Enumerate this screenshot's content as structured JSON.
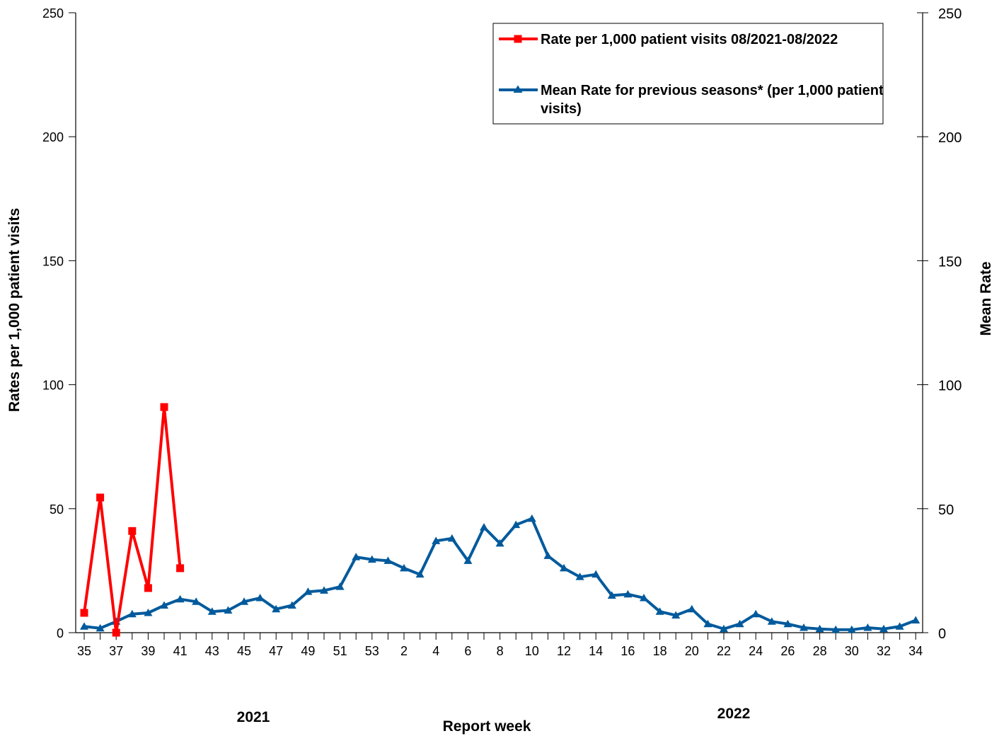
{
  "chart_data": {
    "type": "line",
    "xlabel": "Report week",
    "ylabel_left": "Rates per 1,000 patient visits",
    "ylabel_right": "Mean Rate",
    "ylim": [
      0,
      250
    ],
    "yticks": [
      "0",
      "50",
      "100",
      "150",
      "200",
      "250"
    ],
    "weeks": [
      "35",
      "36",
      "37",
      "38",
      "39",
      "40",
      "41",
      "42",
      "43",
      "44",
      "45",
      "46",
      "47",
      "48",
      "49",
      "50",
      "51",
      "52",
      "53",
      "1",
      "2",
      "3",
      "4",
      "5",
      "6",
      "7",
      "8",
      "9",
      "10",
      "11",
      "12",
      "13",
      "14",
      "15",
      "16",
      "17",
      "18",
      "19",
      "20",
      "21",
      "22",
      "23",
      "24",
      "25",
      "26",
      "27",
      "28",
      "29",
      "30",
      "31",
      "32",
      "33",
      "34"
    ],
    "tick_labels": [
      "35",
      "37",
      "39",
      "41",
      "43",
      "45",
      "47",
      "49",
      "51",
      "53",
      "2",
      "4",
      "6",
      "8",
      "10",
      "12",
      "14",
      "16",
      "18",
      "20",
      "22",
      "24",
      "26",
      "28",
      "30",
      "32",
      "34"
    ],
    "year_labels": [
      "2021",
      "2022"
    ],
    "series": [
      {
        "name": "Rate per 1,000 patient visits 08/2021-08/2022",
        "color": "#ff0000",
        "marker": "square",
        "values": [
          8,
          54.5,
          0,
          41,
          18,
          91,
          26
        ]
      },
      {
        "name": "Mean Rate for previous seasons* (per 1,000 patient visits)",
        "color": "#005a9c",
        "marker": "triangle",
        "values": [
          2.5,
          1.8,
          4.5,
          7.5,
          8,
          11,
          13.5,
          12.5,
          8.5,
          9,
          12.5,
          14,
          9.5,
          11,
          16.5,
          17,
          18.5,
          30.5,
          29.5,
          29,
          26,
          23.5,
          37,
          38,
          29,
          42.5,
          36,
          43.5,
          46,
          31,
          26,
          22.5,
          23.5,
          15,
          15.5,
          14,
          8.5,
          7,
          9.5,
          3.5,
          1.5,
          3.5,
          7.5,
          4.5,
          3.5,
          2,
          1.5,
          1.2,
          1.2,
          2,
          1.5,
          2.5,
          5
        ]
      }
    ],
    "legend": {
      "position": "top-right",
      "entries": [
        "Rate per 1,000 patient visits 08/2021-08/2022",
        "Mean Rate for previous seasons* (per 1,000 patient",
        "visits)"
      ]
    }
  }
}
